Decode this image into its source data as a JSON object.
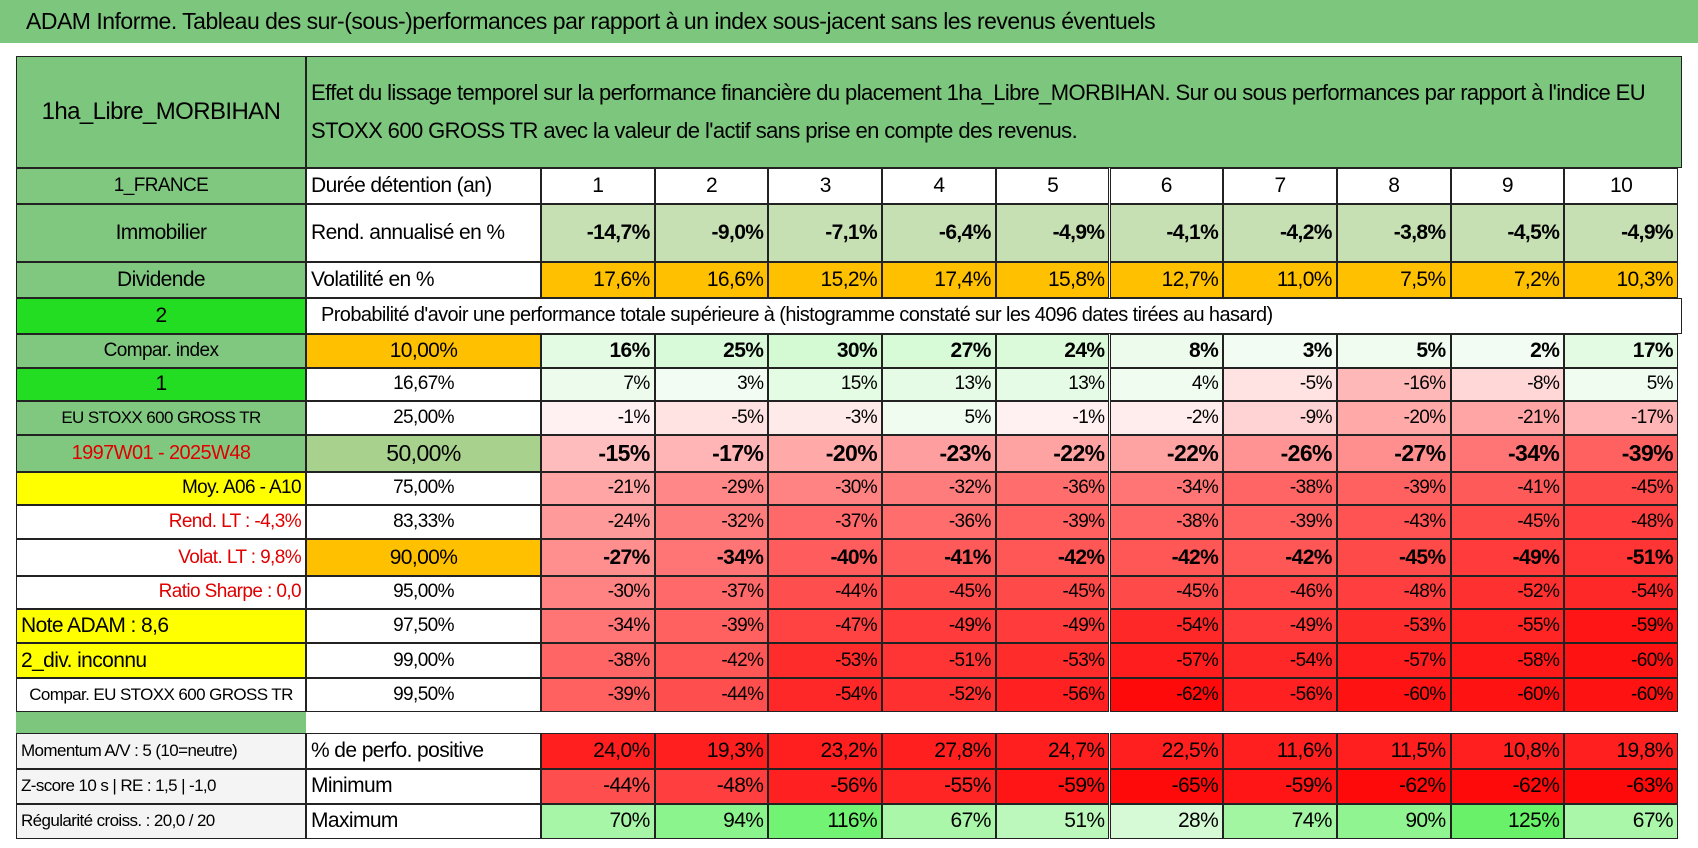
{
  "title": "ADAM Informe. Tableau des sur-(sous-)performances par rapport à un index sous-jacent sans les revenus éventuels",
  "header": {
    "fund": "1ha_Libre_MORBIHAN",
    "description": "Effet du lissage temporel sur la performance financière du placement 1ha_Libre_MORBIHAN. Sur ou sous performances par rapport à l'indice EU STOXX 600 GROSS TR avec la valeur de l'actif sans prise en compte des revenus."
  },
  "rows": [
    {
      "label": "1_FRANCE",
      "name": "Durée détention (an)",
      "cells": [
        "1",
        "2",
        "3",
        "4",
        "5",
        "6",
        "7",
        "8",
        "9",
        "10"
      ]
    },
    {
      "label": "Immobilier",
      "name": "Rend. annualisé en %",
      "cells": [
        "-14,7%",
        "-9,0%",
        "-7,1%",
        "-6,4%",
        "-4,9%",
        "-4,1%",
        "-4,2%",
        "-3,8%",
        "-4,5%",
        "-4,9%"
      ]
    },
    {
      "label": "Dividende",
      "name": "Volatilité en %",
      "cells": [
        "17,6%",
        "16,6%",
        "15,2%",
        "17,4%",
        "15,8%",
        "12,7%",
        "11,0%",
        "7,5%",
        "7,2%",
        "10,3%"
      ]
    },
    {
      "label": "2",
      "name": "Probabilité d'avoir une performance totale supérieure à (histogramme constaté sur les 4096 dates tirées au hasard)"
    },
    {
      "label": "Compar. index",
      "name": "10,00%",
      "cells": [
        "16%",
        "25%",
        "30%",
        "27%",
        "24%",
        "8%",
        "3%",
        "5%",
        "2%",
        "17%"
      ]
    },
    {
      "label": "1",
      "name": "16,67%",
      "cells": [
        "7%",
        "3%",
        "15%",
        "13%",
        "13%",
        "4%",
        "-5%",
        "-16%",
        "-8%",
        "5%"
      ]
    },
    {
      "label": "EU STOXX 600 GROSS TR",
      "name": "25,00%",
      "cells": [
        "-1%",
        "-5%",
        "-3%",
        "5%",
        "-1%",
        "-2%",
        "-9%",
        "-20%",
        "-21%",
        "-17%"
      ]
    },
    {
      "label": "1997W01 - 2025W48",
      "name": "50,00%",
      "cells": [
        "-15%",
        "-17%",
        "-20%",
        "-23%",
        "-22%",
        "-22%",
        "-26%",
        "-27%",
        "-34%",
        "-39%"
      ]
    },
    {
      "label": "Moy. A06 - A10",
      "name": "75,00%",
      "cells": [
        "-21%",
        "-29%",
        "-30%",
        "-32%",
        "-36%",
        "-34%",
        "-38%",
        "-39%",
        "-41%",
        "-45%"
      ]
    },
    {
      "label": "Rend. LT :    -4,3%",
      "name": "83,33%",
      "cells": [
        "-24%",
        "-32%",
        "-37%",
        "-36%",
        "-39%",
        "-38%",
        "-39%",
        "-43%",
        "-45%",
        "-48%"
      ]
    },
    {
      "label": "Volat. LT :    9,8%",
      "name": "90,00%",
      "cells": [
        "-27%",
        "-34%",
        "-40%",
        "-41%",
        "-42%",
        "-42%",
        "-42%",
        "-45%",
        "-49%",
        "-51%"
      ]
    },
    {
      "label": "Ratio Sharpe :    0,0",
      "name": "95,00%",
      "cells": [
        "-30%",
        "-37%",
        "-44%",
        "-45%",
        "-45%",
        "-45%",
        "-46%",
        "-48%",
        "-52%",
        "-54%"
      ]
    },
    {
      "label": "Note ADAM : 8,6",
      "name": "97,50%",
      "cells": [
        "-34%",
        "-39%",
        "-47%",
        "-49%",
        "-49%",
        "-54%",
        "-49%",
        "-53%",
        "-55%",
        "-59%"
      ]
    },
    {
      "label": "2_div. inconnu",
      "name": "99,00%",
      "cells": [
        "-38%",
        "-42%",
        "-53%",
        "-51%",
        "-53%",
        "-57%",
        "-54%",
        "-57%",
        "-58%",
        "-60%"
      ]
    },
    {
      "label": "Compar. EU STOXX 600 GROSS TR",
      "name": "99,50%",
      "cells": [
        "-39%",
        "-44%",
        "-54%",
        "-52%",
        "-56%",
        "-62%",
        "-56%",
        "-60%",
        "-60%",
        "-60%"
      ]
    },
    {
      "label": "Momentum A/V : 5 (10=neutre)",
      "name": "% de perfo. positive",
      "cells": [
        "24,0%",
        "19,3%",
        "23,2%",
        "27,8%",
        "24,7%",
        "22,5%",
        "11,6%",
        "11,5%",
        "10,8%",
        "19,8%"
      ]
    },
    {
      "label": "Z-score 10 s | RE : 1,5 | -1,0",
      "name": "Minimum",
      "cells": [
        "-44%",
        "-48%",
        "-56%",
        "-55%",
        "-59%",
        "-65%",
        "-59%",
        "-62%",
        "-62%",
        "-63%"
      ]
    },
    {
      "label": "Régularité croiss. : 20,0 / 20",
      "name": "Maximum",
      "cells": [
        "70%",
        "94%",
        "116%",
        "67%",
        "51%",
        "28%",
        "74%",
        "90%",
        "125%",
        "67%"
      ]
    }
  ]
}
